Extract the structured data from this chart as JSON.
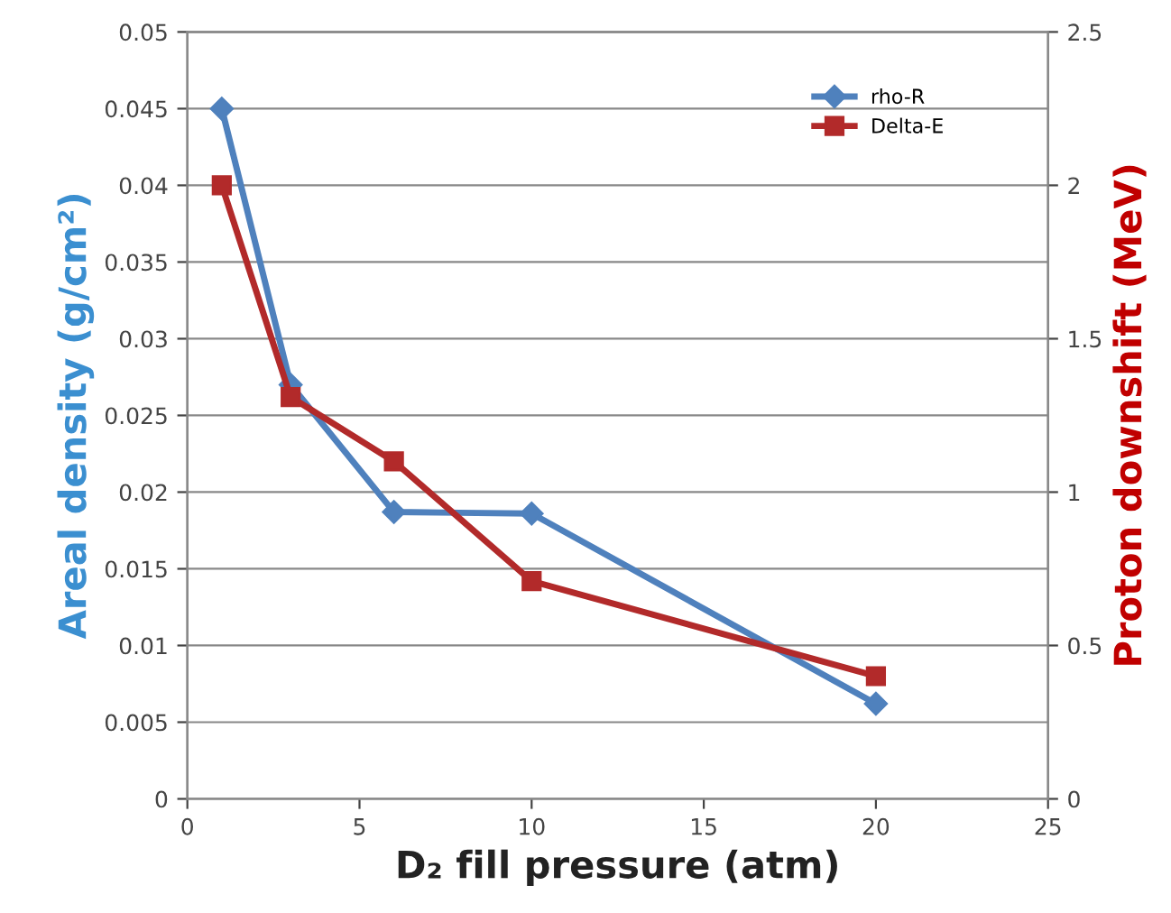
{
  "chart_data": {
    "type": "line",
    "xlabel": "D₂ fill pressure (atm)",
    "ylabel": "Areal density (g/cm²)",
    "y2label": "Proton downshift (MeV)",
    "series": [
      {
        "name": "rho-R",
        "color": "#4f81bd",
        "x": [
          1,
          3,
          6,
          10,
          20
        ],
        "values": [
          0.045,
          0.027,
          0.0187,
          0.0186,
          0.0062
        ],
        "marker": "diamond"
      },
      {
        "name": "Delta-E",
        "color": "#b22a2a",
        "x": [
          1,
          3,
          6,
          10,
          20
        ],
        "values": [
          2.0,
          1.31,
          1.1,
          0.71,
          0.4
        ],
        "marker": "square",
        "axis": "y2"
      }
    ],
    "xlim": [
      0,
      25
    ],
    "xticks": [
      0,
      5,
      10,
      15,
      20,
      25
    ],
    "ylim": [
      0,
      0.05
    ],
    "yticks": [
      0,
      0.005,
      0.01,
      0.015,
      0.02,
      0.025,
      0.03,
      0.035,
      0.04,
      0.045,
      0.05
    ],
    "y2lim": [
      0,
      2.5
    ],
    "y2ticks": [
      0,
      0.5,
      1,
      1.5,
      2,
      2.5
    ],
    "grid": "y",
    "legend": "top right"
  }
}
